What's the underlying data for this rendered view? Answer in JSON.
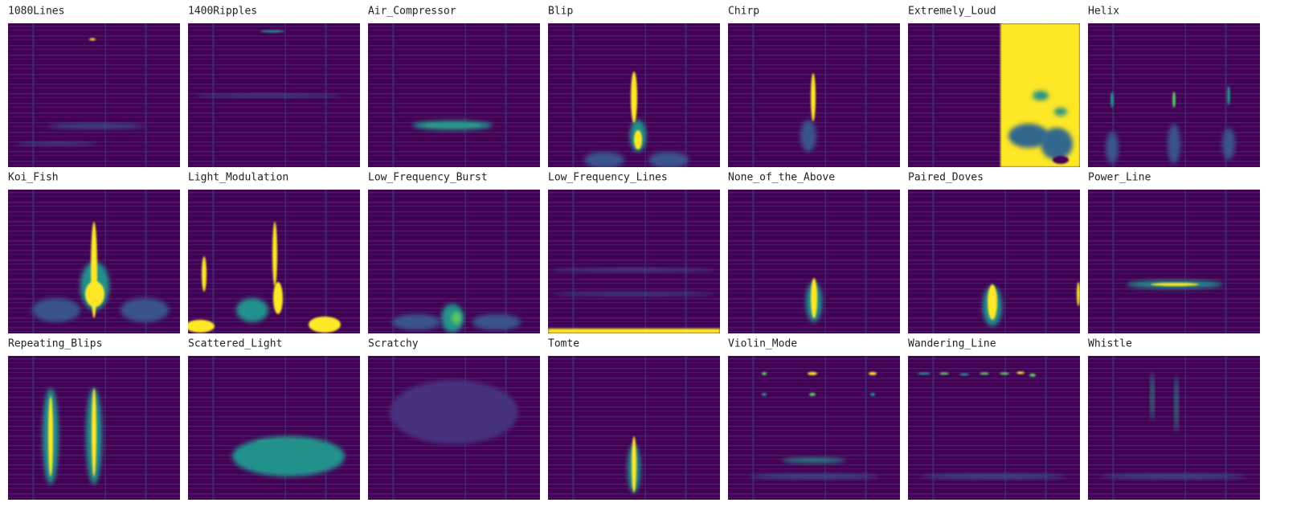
{
  "panels": [
    {
      "label": "1080Lines"
    },
    {
      "label": "1400Ripples"
    },
    {
      "label": "Air_Compressor"
    },
    {
      "label": "Blip"
    },
    {
      "label": "Chirp"
    },
    {
      "label": "Extremely_Loud"
    },
    {
      "label": "Helix"
    },
    {
      "label": "Koi_Fish"
    },
    {
      "label": "Light_Modulation"
    },
    {
      "label": "Low_Frequency_Burst"
    },
    {
      "label": "Low_Frequency_Lines"
    },
    {
      "label": "None_of_the_Above"
    },
    {
      "label": "Paired_Doves"
    },
    {
      "label": "Power_Line"
    },
    {
      "label": "Repeating_Blips"
    },
    {
      "label": "Scattered_Light"
    },
    {
      "label": "Scratchy"
    },
    {
      "label": "Tomte"
    },
    {
      "label": "Violin_Mode"
    },
    {
      "label": "Wandering_Line"
    },
    {
      "label": "Whistle"
    }
  ]
}
